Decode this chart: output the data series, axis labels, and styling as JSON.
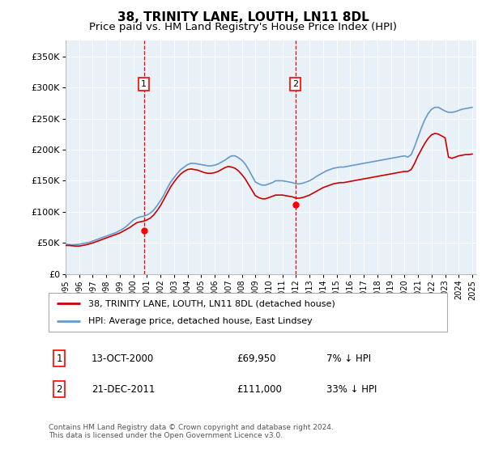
{
  "title": "38, TRINITY LANE, LOUTH, LN11 8DL",
  "subtitle": "Price paid vs. HM Land Registry's House Price Index (HPI)",
  "title_fontsize": 11,
  "subtitle_fontsize": 9.5,
  "background_color": "#ffffff",
  "plot_background": "#e8f0f8",
  "grid_color": "#ffffff",
  "hpi_color": "#6699cc",
  "price_color": "#cc0000",
  "ylim": [
    0,
    375000
  ],
  "yticks": [
    0,
    50000,
    100000,
    150000,
    200000,
    250000,
    300000,
    350000
  ],
  "ytick_labels": [
    "£0",
    "£50K",
    "£100K",
    "£150K",
    "£200K",
    "£250K",
    "£300K",
    "£350K"
  ],
  "transaction1_x": 2000.78,
  "transaction1_price": 69950,
  "transaction1_date": "13-OCT-2000",
  "transaction1_hpi_pct": "7% ↓ HPI",
  "transaction2_x": 2011.95,
  "transaction2_price": 111000,
  "transaction2_date": "21-DEC-2011",
  "transaction2_hpi_pct": "33% ↓ HPI",
  "legend_line1": "38, TRINITY LANE, LOUTH, LN11 8DL (detached house)",
  "legend_line2": "HPI: Average price, detached house, East Lindsey",
  "footer": "Contains HM Land Registry data © Crown copyright and database right 2024.\nThis data is licensed under the Open Government Licence v3.0.",
  "hpi_data_x": [
    1995.0,
    1995.25,
    1995.5,
    1995.75,
    1996.0,
    1996.25,
    1996.5,
    1996.75,
    1997.0,
    1997.25,
    1997.5,
    1997.75,
    1998.0,
    1998.25,
    1998.5,
    1998.75,
    1999.0,
    1999.25,
    1999.5,
    1999.75,
    2000.0,
    2000.25,
    2000.5,
    2000.75,
    2001.0,
    2001.25,
    2001.5,
    2001.75,
    2002.0,
    2002.25,
    2002.5,
    2002.75,
    2003.0,
    2003.25,
    2003.5,
    2003.75,
    2004.0,
    2004.25,
    2004.5,
    2004.75,
    2005.0,
    2005.25,
    2005.5,
    2005.75,
    2006.0,
    2006.25,
    2006.5,
    2006.75,
    2007.0,
    2007.25,
    2007.5,
    2007.75,
    2008.0,
    2008.25,
    2008.5,
    2008.75,
    2009.0,
    2009.25,
    2009.5,
    2009.75,
    2010.0,
    2010.25,
    2010.5,
    2010.75,
    2011.0,
    2011.25,
    2011.5,
    2011.75,
    2012.0,
    2012.25,
    2012.5,
    2012.75,
    2013.0,
    2013.25,
    2013.5,
    2013.75,
    2014.0,
    2014.25,
    2014.5,
    2014.75,
    2015.0,
    2015.25,
    2015.5,
    2015.75,
    2016.0,
    2016.25,
    2016.5,
    2016.75,
    2017.0,
    2017.25,
    2017.5,
    2017.75,
    2018.0,
    2018.25,
    2018.5,
    2018.75,
    2019.0,
    2019.25,
    2019.5,
    2019.75,
    2020.0,
    2020.25,
    2020.5,
    2020.75,
    2021.0,
    2021.25,
    2021.5,
    2021.75,
    2022.0,
    2022.25,
    2022.5,
    2022.75,
    2023.0,
    2023.25,
    2023.5,
    2023.75,
    2024.0,
    2024.25,
    2024.5,
    2024.75,
    2025.0
  ],
  "hpi_data_y": [
    48000,
    47500,
    47000,
    47500,
    48000,
    49000,
    50000,
    51000,
    53000,
    55000,
    57000,
    59000,
    61000,
    63000,
    65000,
    67000,
    70000,
    73000,
    77000,
    82000,
    87000,
    90000,
    92000,
    93000,
    95000,
    98000,
    103000,
    110000,
    118000,
    127000,
    138000,
    148000,
    155000,
    162000,
    168000,
    172000,
    176000,
    178000,
    178000,
    177000,
    176000,
    175000,
    174000,
    174000,
    175000,
    177000,
    180000,
    183000,
    187000,
    190000,
    190000,
    187000,
    183000,
    177000,
    168000,
    158000,
    148000,
    145000,
    143000,
    143000,
    145000,
    147000,
    150000,
    150000,
    150000,
    149000,
    148000,
    147000,
    145000,
    145000,
    146000,
    148000,
    150000,
    153000,
    157000,
    160000,
    163000,
    166000,
    168000,
    170000,
    171000,
    172000,
    172000,
    173000,
    174000,
    175000,
    176000,
    177000,
    178000,
    179000,
    180000,
    181000,
    182000,
    183000,
    184000,
    185000,
    186000,
    187000,
    188000,
    189000,
    190000,
    188000,
    192000,
    205000,
    220000,
    235000,
    248000,
    258000,
    265000,
    268000,
    268000,
    265000,
    262000,
    260000,
    260000,
    261000,
    263000,
    265000,
    266000,
    267000,
    268000
  ],
  "price_data_x": [
    1995.0,
    1995.25,
    1995.5,
    1995.75,
    1996.0,
    1996.25,
    1996.5,
    1996.75,
    1997.0,
    1997.25,
    1997.5,
    1997.75,
    1998.0,
    1998.25,
    1998.5,
    1998.75,
    1999.0,
    1999.25,
    1999.5,
    1999.75,
    2000.0,
    2000.25,
    2000.5,
    2000.75,
    2001.0,
    2001.25,
    2001.5,
    2001.75,
    2002.0,
    2002.25,
    2002.5,
    2002.75,
    2003.0,
    2003.25,
    2003.5,
    2003.75,
    2004.0,
    2004.25,
    2004.5,
    2004.75,
    2005.0,
    2005.25,
    2005.5,
    2005.75,
    2006.0,
    2006.25,
    2006.5,
    2006.75,
    2007.0,
    2007.25,
    2007.5,
    2007.75,
    2008.0,
    2008.25,
    2008.5,
    2008.75,
    2009.0,
    2009.25,
    2009.5,
    2009.75,
    2010.0,
    2010.25,
    2010.5,
    2010.75,
    2011.0,
    2011.25,
    2011.5,
    2011.75,
    2012.0,
    2012.25,
    2012.5,
    2012.75,
    2013.0,
    2013.25,
    2013.5,
    2013.75,
    2014.0,
    2014.25,
    2014.5,
    2014.75,
    2015.0,
    2015.25,
    2015.5,
    2015.75,
    2016.0,
    2016.25,
    2016.5,
    2016.75,
    2017.0,
    2017.25,
    2017.5,
    2017.75,
    2018.0,
    2018.25,
    2018.5,
    2018.75,
    2019.0,
    2019.25,
    2019.5,
    2019.75,
    2020.0,
    2020.25,
    2020.5,
    2020.75,
    2021.0,
    2021.25,
    2021.5,
    2021.75,
    2022.0,
    2022.25,
    2022.5,
    2022.75,
    2023.0,
    2023.25,
    2023.5,
    2023.75,
    2024.0,
    2024.25,
    2024.5,
    2024.75,
    2025.0
  ],
  "price_data_y": [
    46000,
    46000,
    45500,
    45000,
    45000,
    46000,
    47000,
    48500,
    50000,
    52000,
    54000,
    56000,
    58000,
    60000,
    62000,
    64000,
    66000,
    69000,
    72000,
    75000,
    79000,
    82500,
    84000,
    85000,
    87000,
    90000,
    95000,
    102000,
    110000,
    120000,
    130000,
    140000,
    148000,
    155000,
    161000,
    165000,
    168000,
    169000,
    168000,
    167000,
    165000,
    163000,
    162000,
    162000,
    163000,
    165000,
    168000,
    171000,
    173000,
    172000,
    170000,
    166000,
    160000,
    153000,
    144000,
    135000,
    126000,
    123000,
    121000,
    121000,
    123000,
    125000,
    127000,
    127000,
    127000,
    126000,
    125000,
    124000,
    122000,
    122000,
    123000,
    125000,
    127000,
    130000,
    133000,
    136000,
    139000,
    141000,
    143000,
    145000,
    146000,
    147000,
    147000,
    148000,
    149000,
    150000,
    151000,
    152000,
    153000,
    154000,
    155000,
    156000,
    157000,
    158000,
    159000,
    160000,
    161000,
    162000,
    163000,
    164000,
    165000,
    165000,
    168000,
    178000,
    190000,
    200000,
    210000,
    218000,
    224000,
    226000,
    225000,
    222000,
    219000,
    188000,
    186000,
    188000,
    190000,
    191000,
    192000,
    192000,
    193000
  ]
}
